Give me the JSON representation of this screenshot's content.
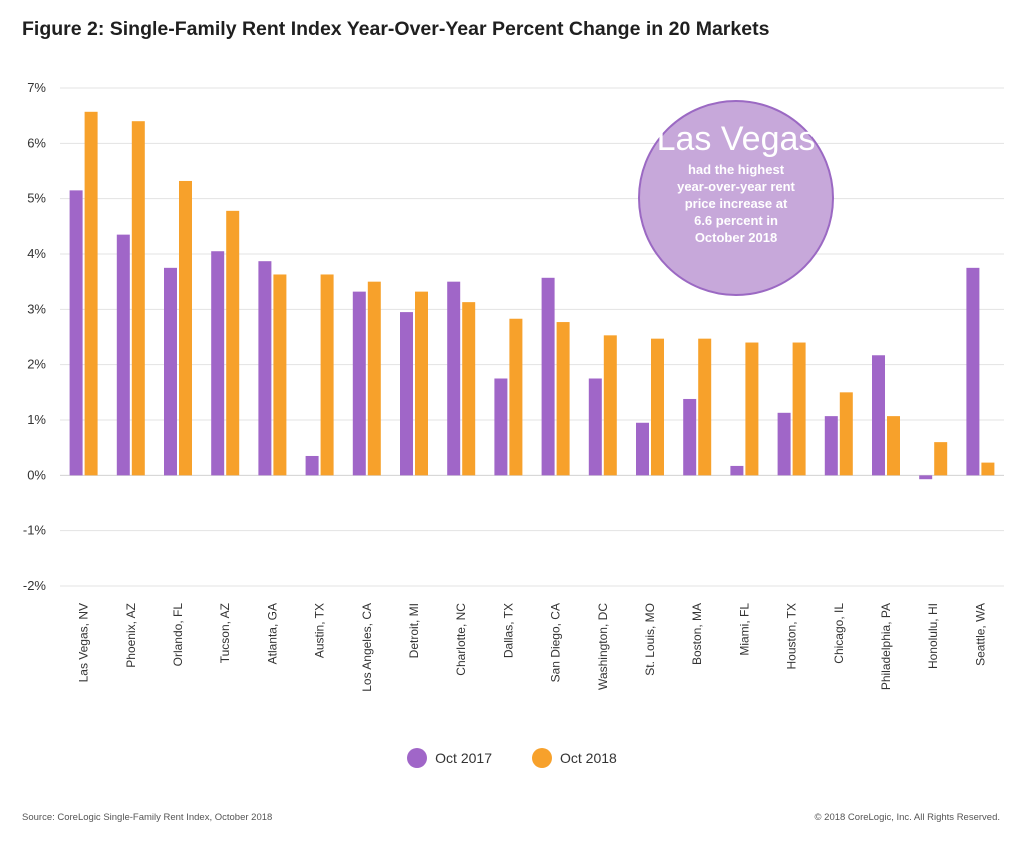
{
  "title": "Figure 2: Single-Family Rent Index Year-Over-Year Percent Change in 20 Markets",
  "callout": {
    "city": "Las Vegas",
    "lines": [
      "had the highest",
      "year-over-year rent",
      "price increase at",
      "6.6 percent in",
      "October 2018"
    ]
  },
  "legend": {
    "oct2017": "Oct 2017",
    "oct2018": "Oct 2018"
  },
  "source": "Source: CoreLogic Single-Family Rent Index, October 2018",
  "copyright": "© 2018 CoreLogic, Inc. All Rights Reserved.",
  "colors": {
    "oct2017": "#a066c8",
    "oct2018": "#f7a12b",
    "callout": "#c7a8da",
    "callout_border": "#9b69c3",
    "grid": "#e3e3e3"
  },
  "chart_data": {
    "type": "bar",
    "title": "Figure 2: Single-Family Rent Index Year-Over-Year Percent Change in 20 Markets",
    "xlabel": "",
    "ylabel": "",
    "ylim": [
      -2,
      7
    ],
    "yticks": [
      7,
      6,
      5,
      4,
      3,
      2,
      1,
      0,
      -1,
      -2
    ],
    "ytick_labels": [
      "7%",
      "6%",
      "5%",
      "4%",
      "3%",
      "2%",
      "1%",
      "0%",
      "-1%",
      "-2%"
    ],
    "grid": true,
    "legend_position": "bottom-center",
    "categories": [
      "Las Vegas, NV",
      "Phoenix, AZ",
      "Orlando, FL",
      "Tucson, AZ",
      "Atlanta, GA",
      "Austin, TX",
      "Los Angeles, CA",
      "Detroit, MI",
      "Charlotte, NC",
      "Dallas, TX",
      "San Diego, CA",
      "Washington, DC",
      "St. Louis, MO",
      "Boston, MA",
      "Miami, FL",
      "Houston, TX",
      "Chicago, IL",
      "Philadelphia, PA",
      "Honolulu, HI",
      "Seattle, WA"
    ],
    "series": [
      {
        "name": "Oct 2017",
        "values": [
          5.15,
          4.35,
          3.75,
          4.05,
          3.87,
          0.35,
          3.32,
          2.95,
          3.5,
          1.75,
          3.57,
          1.75,
          0.95,
          1.38,
          0.17,
          1.13,
          1.07,
          2.17,
          -0.07,
          3.75
        ]
      },
      {
        "name": "Oct 2018",
        "values": [
          6.57,
          6.4,
          5.32,
          4.78,
          3.63,
          3.63,
          3.5,
          3.32,
          3.13,
          2.83,
          2.77,
          2.53,
          2.47,
          2.47,
          2.4,
          2.4,
          1.5,
          1.07,
          0.6,
          0.23
        ]
      }
    ]
  }
}
